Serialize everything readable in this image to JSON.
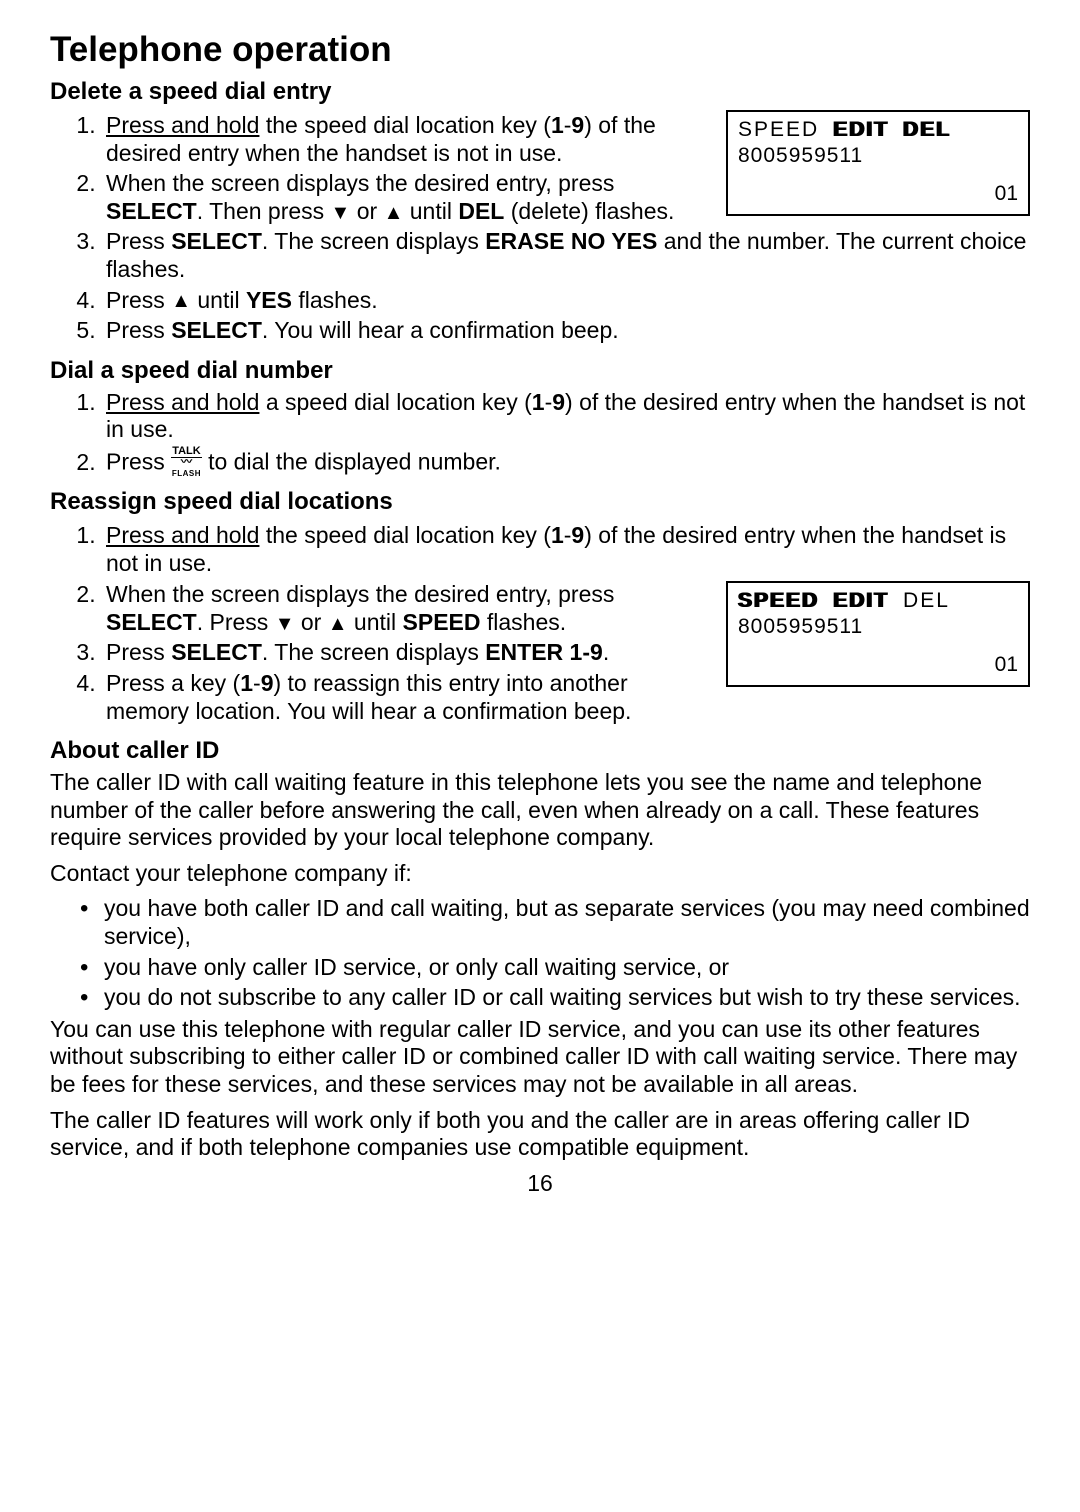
{
  "title": "Telephone operation",
  "pageNumber": "16",
  "lcd1": {
    "speed": "SPEED",
    "edit": "EDIT",
    "del": "DEL",
    "number": "8005959511",
    "loc": "01"
  },
  "lcd2": {
    "speed": "SPEED",
    "edit": "EDIT",
    "del": "DEL",
    "number": "8005959511",
    "loc": "01"
  },
  "s1": {
    "heading": "Delete a speed dial entry",
    "li1a": "Press and hold",
    "li1b": " the speed dial location key (",
    "li1c": "1",
    "li1d": "-",
    "li1e": "9",
    "li1f": ") of the desired entry when the handset is not in use.",
    "li2a": "When the screen displays the desired entry, press ",
    "li2b": "SELECT",
    "li2c": ". Then press ",
    "li2d": " or ",
    "li2e": " until ",
    "li2f": "DEL",
    "li2g": " (delete) flashes.",
    "li3a": "Press ",
    "li3b": "SELECT",
    "li3c": ". The screen displays ",
    "li3d": "ERASE NO YES",
    "li3e": " and the number. The current choice flashes.",
    "li4a": "Press ",
    "li4b": " until ",
    "li4c": "YES",
    "li4d": " flashes.",
    "li5a": "Press ",
    "li5b": "SELECT",
    "li5c": ". You will hear a confirmation beep."
  },
  "s2": {
    "heading": "Dial a speed dial number",
    "li1a": "Press and hold",
    "li1b": " a speed dial location key (",
    "li1c": "1",
    "li1d": "-",
    "li1e": "9",
    "li1f": ") of the desired entry when the handset is not in use.",
    "li2a": "Press ",
    "li2b": " to dial the displayed number.",
    "talkTop": "TALK",
    "talkBot": "FLASH"
  },
  "s3": {
    "heading": "Reassign speed dial locations",
    "li1a": "Press and hold",
    "li1b": " the speed dial location key (",
    "li1c": "1",
    "li1d": "-",
    "li1e": "9",
    "li1f": ") of the desired entry when the handset is not in use.",
    "li2a": "When the screen displays the desired entry, press ",
    "li2b": "SELECT",
    "li2c": ". Press ",
    "li2d": " or ",
    "li2e": " until ",
    "li2f": "SPEED",
    "li2g": " flashes.",
    "li3a": "Press ",
    "li3b": "SELECT",
    "li3c": ". The screen displays ",
    "li3d": "ENTER 1-9",
    "li3e": ".",
    "li4a": "Press a key (",
    "li4b": "1",
    "li4c": "-",
    "li4d": "9",
    "li4e": ") to reassign this entry into another memory location. You will hear a confirmation beep."
  },
  "s4": {
    "heading": "About caller ID",
    "p1": "The caller ID with call waiting feature in this telephone lets you see the name and telephone number of the caller before answering the call, even when already on a call. These features require services provided by your local telephone company.",
    "p2": "Contact your telephone company if:",
    "b1": "you have both caller ID and call waiting, but as separate services (you may need combined service),",
    "b2": "you have only caller ID service, or only call waiting service, or",
    "b3": "you do not subscribe to any caller ID or call waiting services but wish to try these services.",
    "p3": "You can use this telephone with regular caller ID service, and you can use its other features without subscribing to either caller ID or combined caller ID with call waiting service. There may be fees for these services, and these services may not be available in all areas.",
    "p4": "The caller ID features will work only if both you and the caller are in areas offering caller ID service, and if both telephone companies use compatible equipment."
  }
}
